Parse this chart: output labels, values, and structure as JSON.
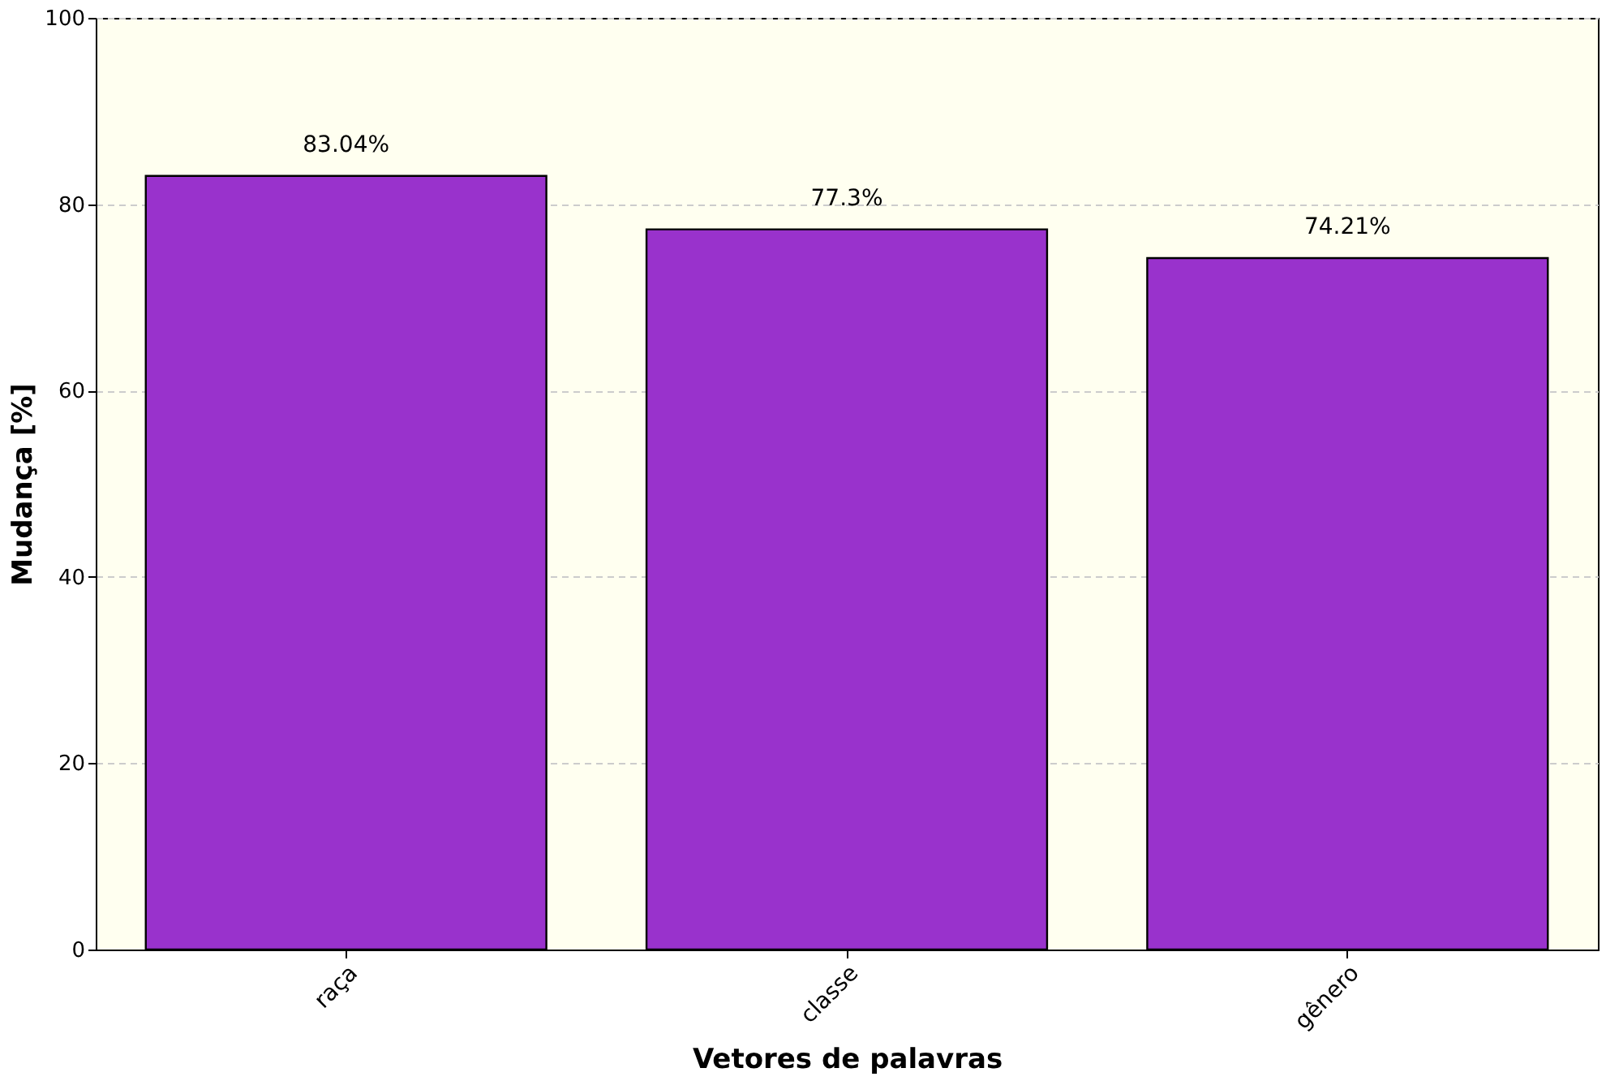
{
  "chart_data": {
    "type": "bar",
    "xlabel": "Vetores de palavras",
    "ylabel": "Mudança [%]",
    "categories": [
      "raça",
      "classe",
      "gênero"
    ],
    "values": [
      83.04,
      77.3,
      74.21
    ],
    "value_labels": [
      "83.04%",
      "77.3%",
      "74.21%"
    ],
    "color": "#9932cc",
    "ylim": [
      0,
      100
    ],
    "yticks": [
      0,
      20,
      40,
      60,
      80,
      100
    ],
    "grid": "y"
  }
}
